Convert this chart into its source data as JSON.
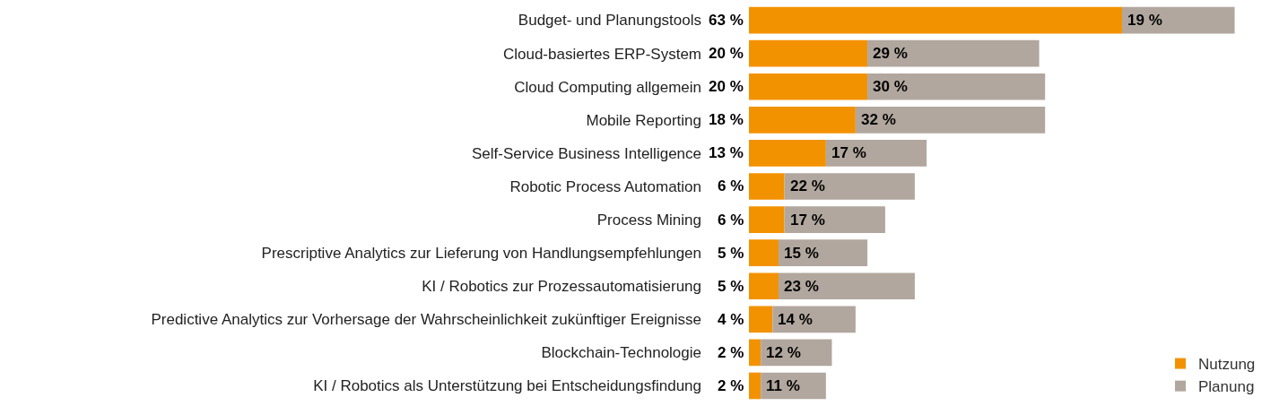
{
  "chart_data": {
    "type": "bar",
    "orientation": "horizontal",
    "stacked": true,
    "data_labels": true,
    "legend": "bottom right",
    "categories": [
      "Budget- und Planungstools",
      "Cloud-basiertes ERP-System",
      "Cloud Computing allgemein",
      "Mobile Reporting",
      "Self-Service Business Intelligence",
      "Robotic Process Automation",
      "Process Mining",
      "Prescriptive Analytics zur Lieferung von Handlungsempfehlungen",
      "KI / Robotics zur Prozessautomatisierung",
      "Predictive Analytics zur Vorhersage der Wahrscheinlichkeit zukünftiger Ereignisse",
      "Blockchain-Technologie",
      "KI / Robotics als Unterstützung bei Entscheidungsfindung"
    ],
    "series": [
      {
        "name": "Nutzung",
        "color": "#f39200",
        "values": [
          63,
          20,
          20,
          18,
          13,
          6,
          6,
          5,
          5,
          4,
          2,
          2
        ],
        "value_labels": [
          "63 %",
          "20 %",
          "20 %",
          "18 %",
          "13 %",
          "6 %",
          "6 %",
          "5 %",
          "5 %",
          "4 %",
          "2 %",
          "2 %"
        ]
      },
      {
        "name": "Planung",
        "color": "#b1a79e",
        "values": [
          19,
          29,
          30,
          32,
          17,
          22,
          17,
          15,
          23,
          14,
          12,
          11
        ],
        "value_labels": [
          "19 %",
          "29 %",
          "30 %",
          "32 %",
          "17 %",
          "22 %",
          "17 %",
          "15 %",
          "23 %",
          "14 %",
          "12 %",
          "11 %"
        ]
      }
    ]
  }
}
